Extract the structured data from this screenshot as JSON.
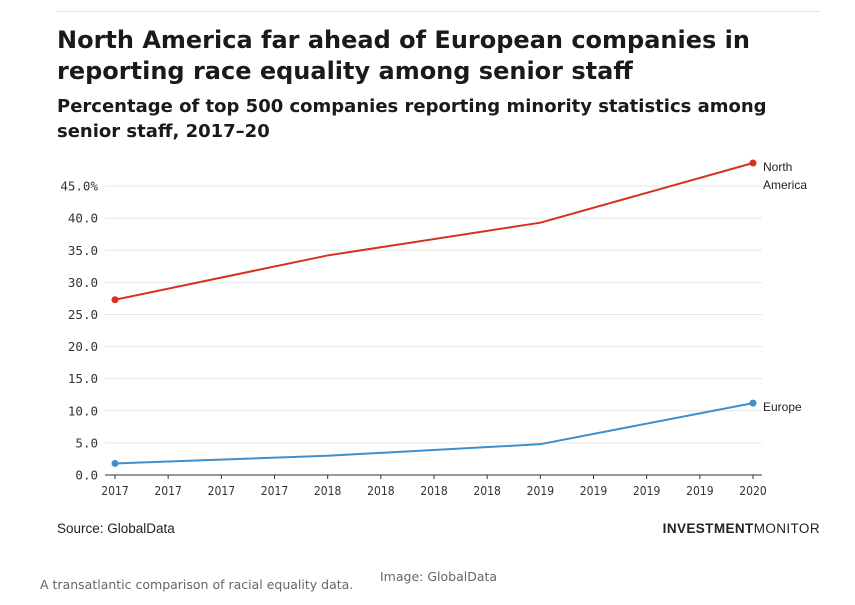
{
  "figure": {
    "title": "North America far ahead of European companies in reporting race equality among senior staff",
    "subtitle": "Percentage of top 500 companies reporting minority statistics among senior staff, 2017–20",
    "source": "Source: GlobalData",
    "brand": {
      "strong": "INVESTMENT",
      "light": "MONITOR"
    },
    "caption": "A transatlantic comparison of racial equality data.",
    "credit": "Image: GlobalData"
  },
  "chart_data": {
    "type": "line",
    "title": "North America far ahead of European companies in reporting race equality among senior staff",
    "subtitle": "Percentage of top 500 companies reporting minority statistics among senior staff, 2017–20",
    "xlabel": "",
    "ylabel": "",
    "ylim": [
      0,
      45
    ],
    "y_ticks": [
      "0.0",
      "5.0",
      "10.0",
      "15.0",
      "20.0",
      "25.0",
      "30.0",
      "35.0",
      "40.0",
      "45.0%"
    ],
    "x_tick_labels": [
      "2017",
      "2017",
      "2017",
      "2017",
      "2018",
      "2018",
      "2018",
      "2018",
      "2019",
      "2019",
      "2019",
      "2019",
      "2020"
    ],
    "x": [
      "2017",
      "2018",
      "2019",
      "2020"
    ],
    "grid": true,
    "legend": "end-of-line labels",
    "series": [
      {
        "name": "North America",
        "label_lines": [
          "North",
          "America"
        ],
        "color": "#d7301f",
        "values": [
          27.3,
          34.2,
          39.3,
          48.6
        ]
      },
      {
        "name": "Europe",
        "label_lines": [
          "Europe"
        ],
        "color": "#3d8fce",
        "values": [
          1.8,
          3.0,
          4.8,
          11.2
        ]
      }
    ]
  }
}
